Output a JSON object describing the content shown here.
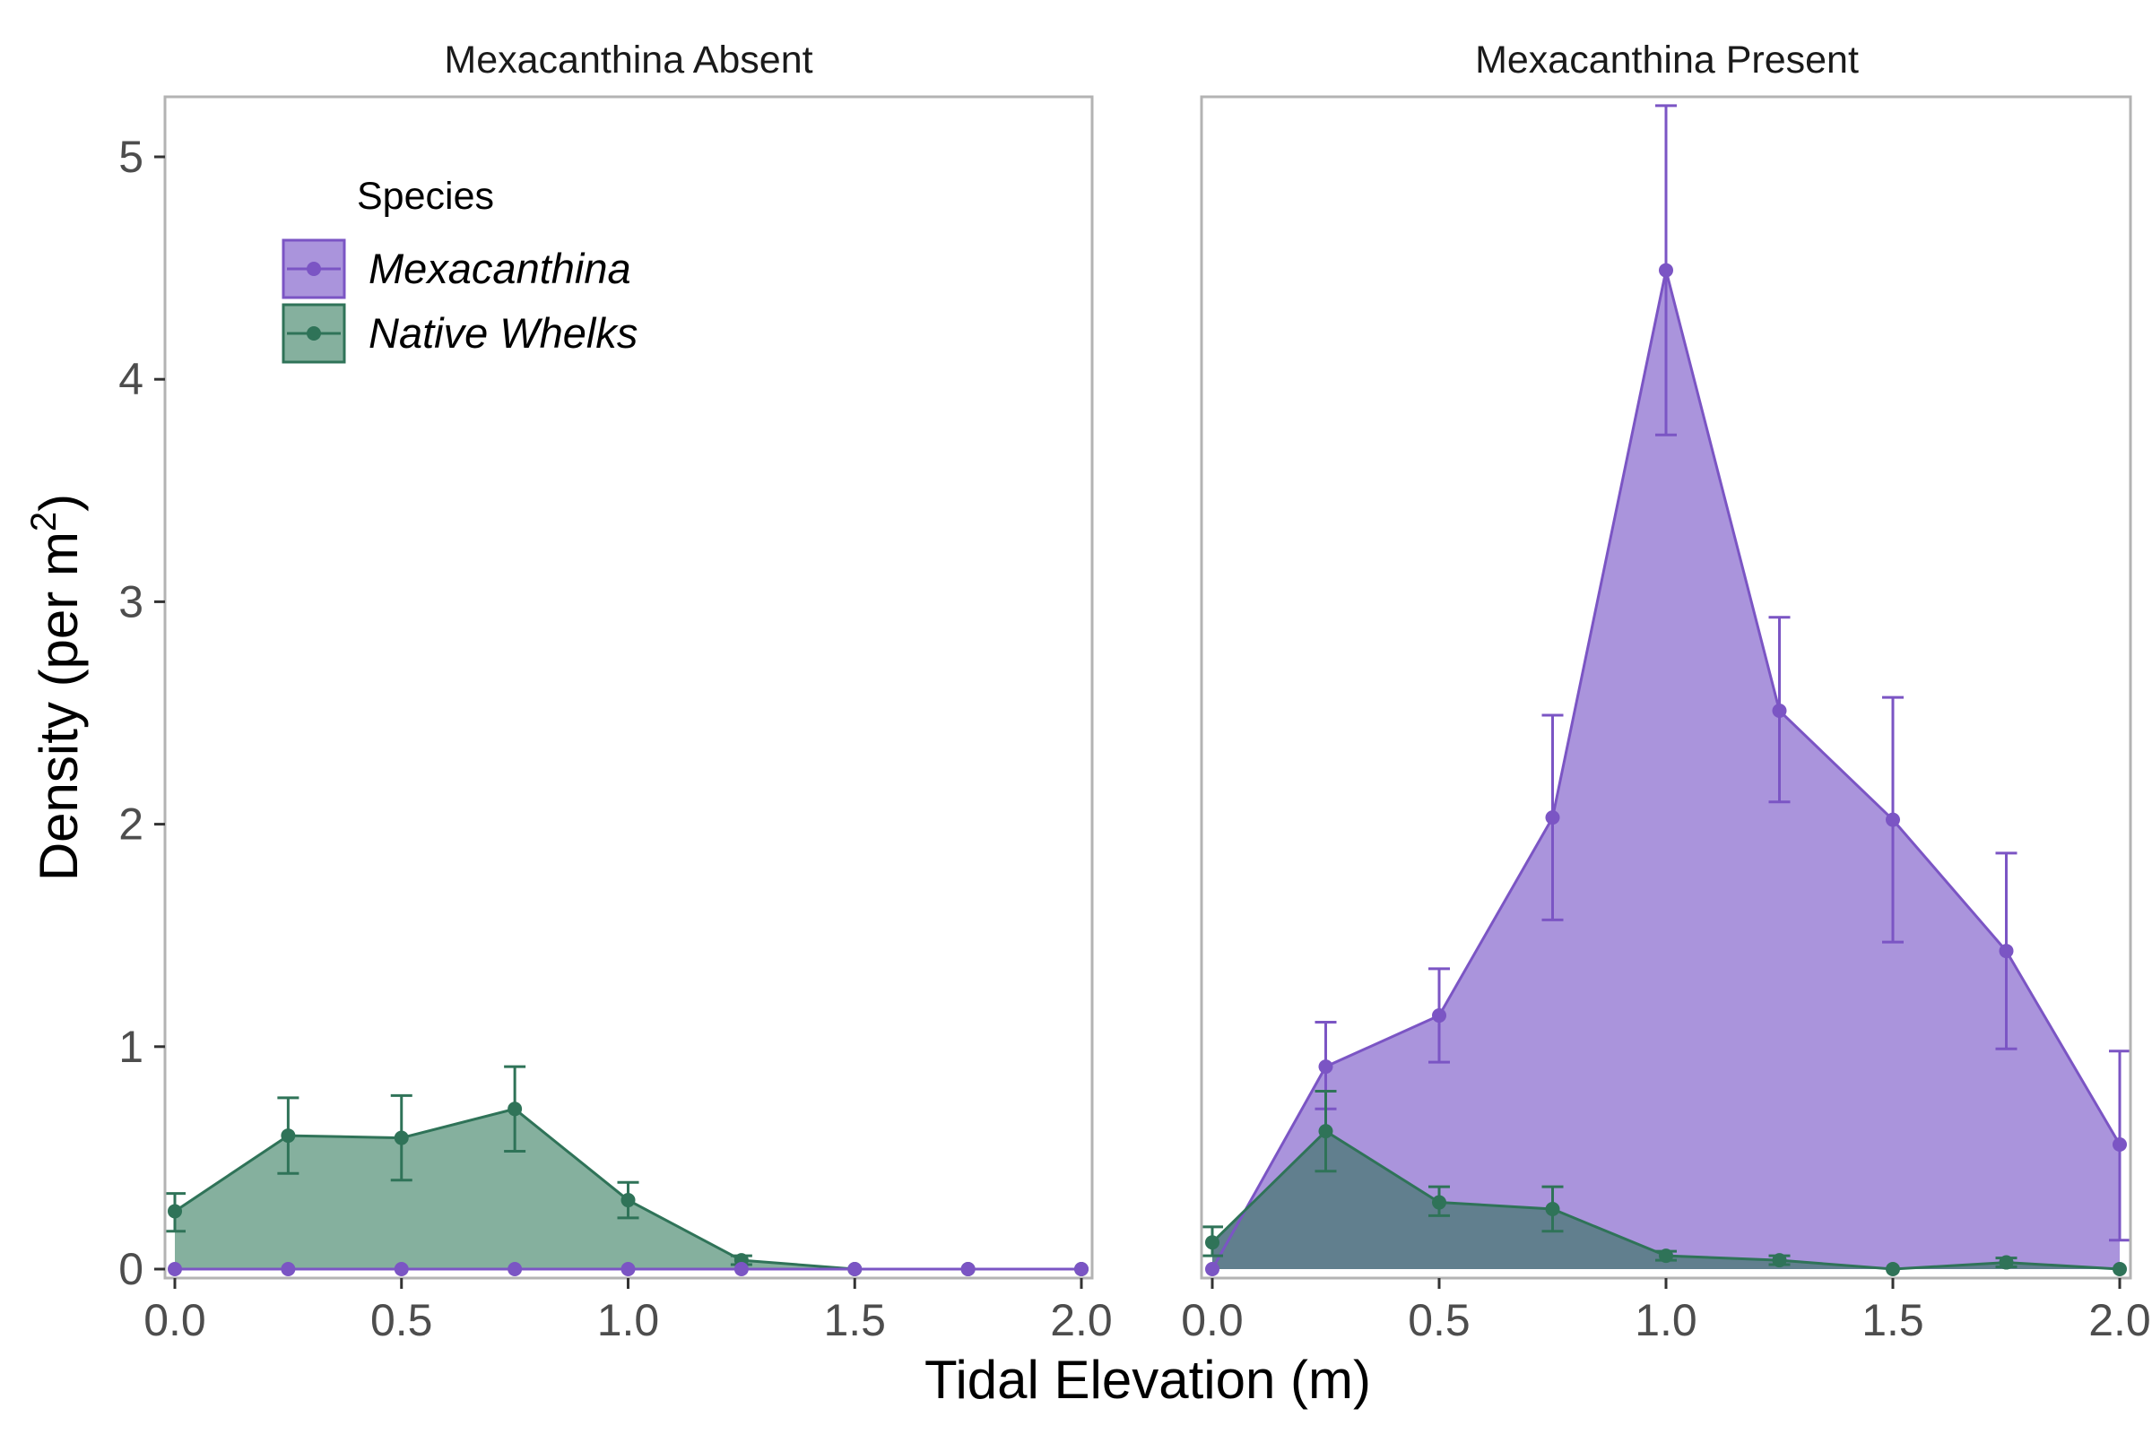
{
  "chart_data": {
    "type": "area",
    "xlabel": "Tidal Elevation (m)",
    "ylabel_main": "Density (per m",
    "ylabel_sup": "2",
    "ylabel_close": ")",
    "xlim": [
      0,
      2
    ],
    "ylim": [
      0,
      5.25
    ],
    "x_ticks": [
      0,
      0.5,
      1.0,
      1.5,
      2.0
    ],
    "x_tick_labels": [
      "0.0",
      "0.5",
      "1.0",
      "1.5",
      "2.0"
    ],
    "y_ticks": [
      0,
      1,
      2,
      3,
      4,
      5
    ],
    "y_tick_labels": [
      "0",
      "1",
      "2",
      "3",
      "4",
      "5"
    ],
    "grid": false,
    "legend": {
      "title": "Species",
      "placement": "top-left",
      "entries": [
        {
          "label": "Mexacanthina",
          "color": "#7b55c4"
        },
        {
          "label": "Native Whelks",
          "color": "#2f7358"
        }
      ]
    },
    "x": [
      0,
      0.25,
      0.5,
      0.75,
      1.0,
      1.25,
      1.5,
      1.75,
      2.0
    ],
    "panels": [
      {
        "title": "Mexacanthina Absent",
        "series": [
          {
            "name": "Native Whelks",
            "color": "#2f7358",
            "fill": "#85b09e",
            "values": [
              0.26,
              0.6,
              0.59,
              0.72,
              0.31,
              0.04,
              0.0,
              0.0,
              0.0
            ],
            "err_low": [
              0.17,
              0.43,
              0.4,
              0.53,
              0.23,
              0.02,
              0.0,
              0.0,
              0.0
            ],
            "err_high": [
              0.34,
              0.77,
              0.78,
              0.91,
              0.39,
              0.06,
              0.0,
              0.0,
              0.0
            ]
          },
          {
            "name": "Mexacanthina",
            "color": "#7b55c4",
            "fill": "#aa94dc",
            "values": [
              0,
              0,
              0,
              0,
              0,
              0,
              0,
              0,
              0
            ],
            "err_low": [
              0,
              0,
              0,
              0,
              0,
              0,
              0,
              0,
              0
            ],
            "err_high": [
              0,
              0,
              0,
              0,
              0,
              0,
              0,
              0,
              0
            ]
          }
        ]
      },
      {
        "title": "Mexacanthina Present",
        "series": [
          {
            "name": "Mexacanthina",
            "color": "#7b55c4",
            "fill": "#aa94dc",
            "values": [
              0.0,
              0.91,
              1.14,
              2.03,
              4.49,
              2.51,
              2.02,
              1.43,
              0.56
            ],
            "err_low": [
              0.0,
              0.72,
              0.93,
              1.57,
              3.75,
              2.1,
              1.47,
              0.99,
              0.13
            ],
            "err_high": [
              0.0,
              1.11,
              1.35,
              2.49,
              5.23,
              2.93,
              2.57,
              1.87,
              0.98
            ]
          },
          {
            "name": "Native Whelks",
            "color": "#2f7358",
            "fill": "#617f8e",
            "values": [
              0.12,
              0.62,
              0.3,
              0.27,
              0.06,
              0.04,
              0.0,
              0.03,
              0.0
            ],
            "err_low": [
              0.06,
              0.44,
              0.24,
              0.17,
              0.04,
              0.02,
              0.0,
              0.01,
              0.0
            ],
            "err_high": [
              0.19,
              0.8,
              0.37,
              0.37,
              0.08,
              0.06,
              0.0,
              0.05,
              0.0
            ]
          }
        ]
      }
    ]
  }
}
